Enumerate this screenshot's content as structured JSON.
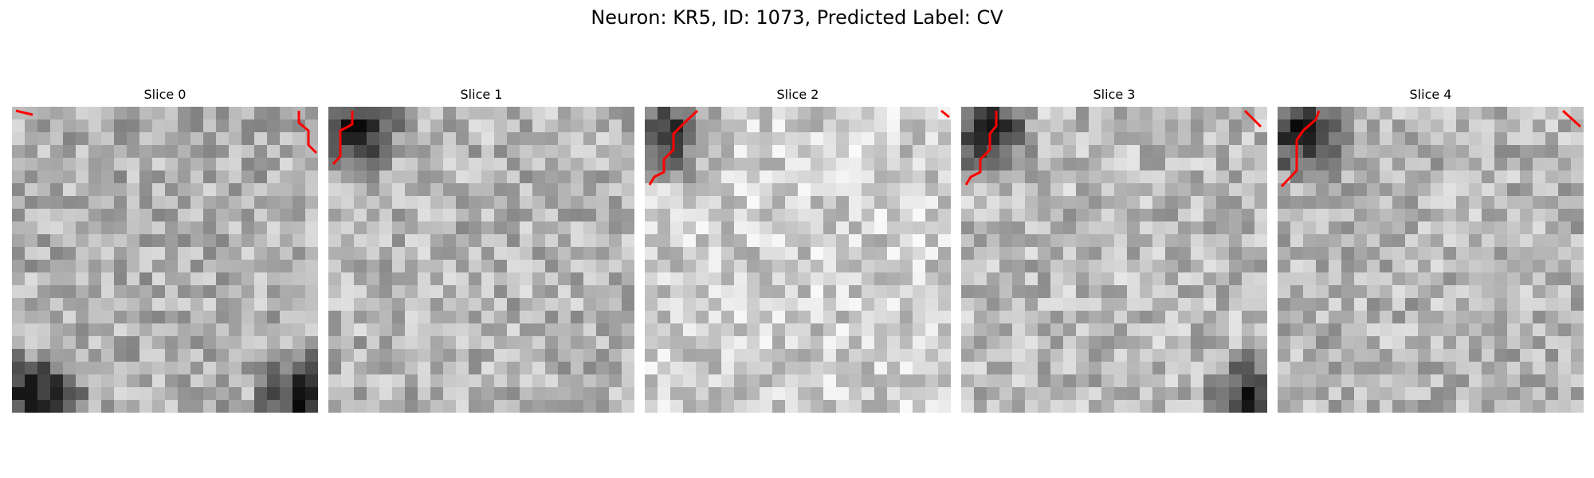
{
  "figure": {
    "title": "Neuron: KR5, ID: 1073, Predicted Label: CV"
  },
  "panels": [
    {
      "title": "Slice 0",
      "dark_regions": [
        "bottom-left",
        "bottom-right"
      ],
      "red_contours": [
        "top-left",
        "top-right"
      ]
    },
    {
      "title": "Slice 1",
      "dark_regions": [
        "top-left"
      ],
      "red_contours": [
        "top-left"
      ]
    },
    {
      "title": "Slice 2",
      "dark_regions": [
        "top-left"
      ],
      "red_contours": [
        "top-left",
        "top-right"
      ]
    },
    {
      "title": "Slice 3",
      "dark_regions": [
        "top-left",
        "bottom-right"
      ],
      "red_contours": [
        "top-left",
        "top-right"
      ]
    },
    {
      "title": "Slice 4",
      "dark_regions": [
        "top-left"
      ],
      "red_contours": [
        "top-left",
        "top-right"
      ]
    }
  ],
  "colors": {
    "contour": "#ff0000",
    "colormap": "grayscale"
  }
}
